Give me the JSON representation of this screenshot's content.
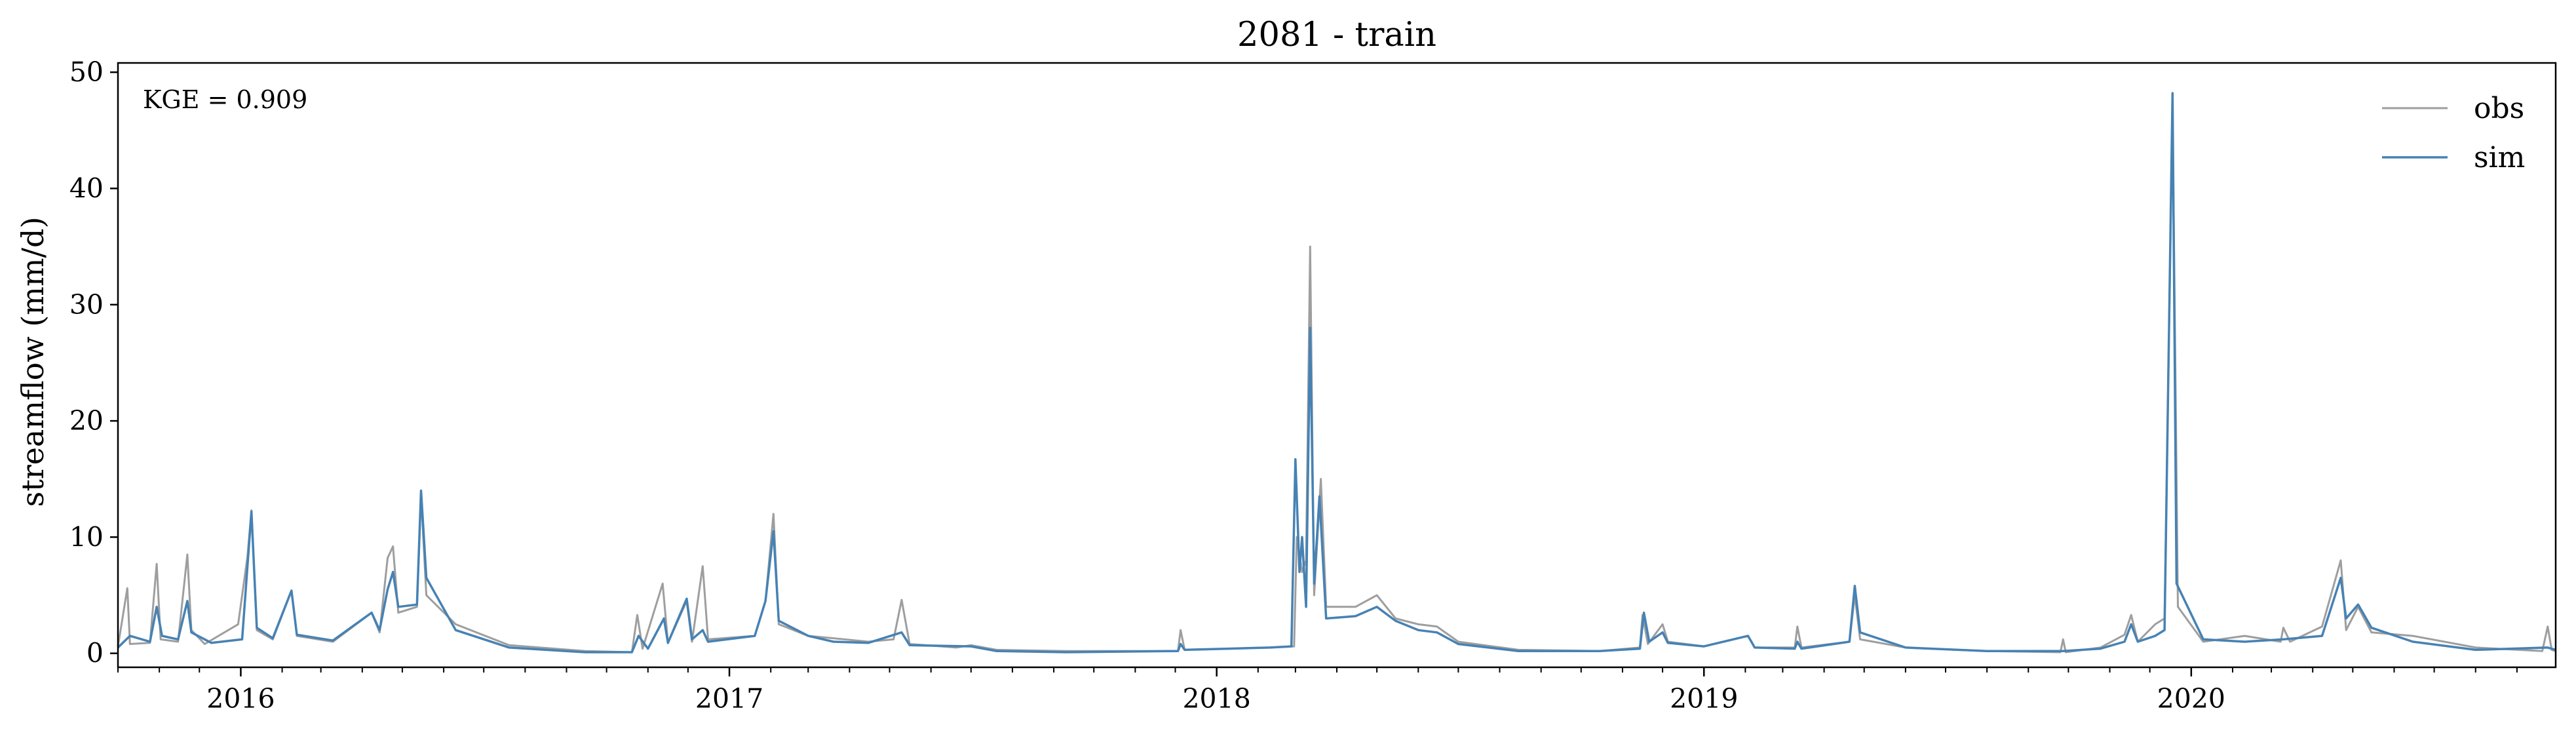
{
  "chart_data": {
    "type": "line",
    "title": "2081 - train",
    "xlabel": "",
    "ylabel": "streamflow (mm/d)",
    "x_start": "2015-10-01",
    "x_end": "2020-09-30",
    "xlim": [
      "2015-10-01",
      "2020-09-30"
    ],
    "ylim": [
      -1.2,
      50.8
    ],
    "yticks": [
      0,
      10,
      20,
      30,
      40,
      50
    ],
    "xticks": [
      {
        "date": "2016-01-01",
        "label": "2016"
      },
      {
        "date": "2017-01-01",
        "label": "2017"
      },
      {
        "date": "2018-01-01",
        "label": "2018"
      },
      {
        "date": "2019-01-01",
        "label": "2019"
      },
      {
        "date": "2020-01-01",
        "label": "2020"
      }
    ],
    "legend_position": "top-right",
    "grid": false,
    "annotation": "KGE = 0.909",
    "series": [
      {
        "name": "obs",
        "color": "#9e9e9e",
        "points": [
          [
            "2015-10-01",
            0.6
          ],
          [
            "2015-10-08",
            5.6
          ],
          [
            "2015-10-10",
            0.8
          ],
          [
            "2015-10-25",
            0.9
          ],
          [
            "2015-10-30",
            7.7
          ],
          [
            "2015-11-02",
            1.2
          ],
          [
            "2015-11-15",
            1.0
          ],
          [
            "2015-11-22",
            8.5
          ],
          [
            "2015-11-25",
            2.0
          ],
          [
            "2015-12-05",
            0.8
          ],
          [
            "2015-12-30",
            2.5
          ],
          [
            "2016-01-06",
            8.3
          ],
          [
            "2016-01-09",
            12.3
          ],
          [
            "2016-01-13",
            2.0
          ],
          [
            "2016-01-25",
            1.2
          ],
          [
            "2016-02-08",
            5.4
          ],
          [
            "2016-02-12",
            1.5
          ],
          [
            "2016-03-10",
            1.0
          ],
          [
            "2016-04-08",
            3.5
          ],
          [
            "2016-04-14",
            1.8
          ],
          [
            "2016-04-20",
            8.2
          ],
          [
            "2016-04-24",
            9.2
          ],
          [
            "2016-04-28",
            3.5
          ],
          [
            "2016-05-12",
            4.0
          ],
          [
            "2016-05-15",
            13.6
          ],
          [
            "2016-05-19",
            5.0
          ],
          [
            "2016-06-10",
            2.5
          ],
          [
            "2016-07-20",
            0.7
          ],
          [
            "2016-09-15",
            0.2
          ],
          [
            "2016-10-20",
            0.1
          ],
          [
            "2016-10-24",
            3.3
          ],
          [
            "2016-10-28",
            0.4
          ],
          [
            "2016-11-12",
            6.0
          ],
          [
            "2016-11-16",
            0.9
          ],
          [
            "2016-11-30",
            4.5
          ],
          [
            "2016-12-04",
            1.0
          ],
          [
            "2016-12-12",
            7.5
          ],
          [
            "2016-12-16",
            1.2
          ],
          [
            "2017-01-20",
            1.5
          ],
          [
            "2017-01-28",
            4.5
          ],
          [
            "2017-02-03",
            12.0
          ],
          [
            "2017-02-07",
            2.5
          ],
          [
            "2017-03-01",
            1.5
          ],
          [
            "2017-03-20",
            1.3
          ],
          [
            "2017-04-15",
            1.0
          ],
          [
            "2017-05-04",
            1.2
          ],
          [
            "2017-05-10",
            4.6
          ],
          [
            "2017-05-16",
            0.8
          ],
          [
            "2017-06-20",
            0.5
          ],
          [
            "2017-07-01",
            0.7
          ],
          [
            "2017-07-20",
            0.3
          ],
          [
            "2017-09-10",
            0.2
          ],
          [
            "2017-10-25",
            0.2
          ],
          [
            "2017-12-03",
            0.2
          ],
          [
            "2017-12-05",
            2.0
          ],
          [
            "2017-12-08",
            0.3
          ],
          [
            "2018-01-10",
            0.4
          ],
          [
            "2018-02-10",
            0.5
          ],
          [
            "2018-02-28",
            0.6
          ],
          [
            "2018-03-02",
            10.0
          ],
          [
            "2018-03-06",
            7.0
          ],
          [
            "2018-03-09",
            8.0
          ],
          [
            "2018-03-12",
            35.0
          ],
          [
            "2018-03-15",
            5.0
          ],
          [
            "2018-03-20",
            15.0
          ],
          [
            "2018-03-24",
            4.0
          ],
          [
            "2018-04-15",
            4.0
          ],
          [
            "2018-05-01",
            5.0
          ],
          [
            "2018-05-15",
            3.0
          ],
          [
            "2018-06-01",
            2.5
          ],
          [
            "2018-06-15",
            2.3
          ],
          [
            "2018-07-01",
            1.0
          ],
          [
            "2018-08-15",
            0.3
          ],
          [
            "2018-10-15",
            0.2
          ],
          [
            "2018-11-14",
            0.5
          ],
          [
            "2018-11-16",
            3.3
          ],
          [
            "2018-11-20",
            0.8
          ],
          [
            "2018-12-01",
            2.5
          ],
          [
            "2018-12-05",
            1.0
          ],
          [
            "2019-01-01",
            0.6
          ],
          [
            "2019-02-03",
            1.5
          ],
          [
            "2019-02-08",
            0.5
          ],
          [
            "2019-03-10",
            0.5
          ],
          [
            "2019-03-12",
            2.3
          ],
          [
            "2019-03-15",
            0.5
          ],
          [
            "2019-04-20",
            1.0
          ],
          [
            "2019-04-24",
            5.0
          ],
          [
            "2019-04-28",
            1.2
          ],
          [
            "2019-06-01",
            0.5
          ],
          [
            "2019-08-01",
            0.2
          ],
          [
            "2019-09-25",
            0.1
          ],
          [
            "2019-09-27",
            1.2
          ],
          [
            "2019-09-29",
            0.1
          ],
          [
            "2019-10-25",
            0.5
          ],
          [
            "2019-11-12",
            1.6
          ],
          [
            "2019-11-17",
            3.3
          ],
          [
            "2019-11-22",
            1.0
          ],
          [
            "2019-12-05",
            2.5
          ],
          [
            "2019-12-12",
            3.0
          ],
          [
            "2019-12-18",
            47.0
          ],
          [
            "2019-12-22",
            4.0
          ],
          [
            "2020-01-10",
            1.0
          ],
          [
            "2020-02-10",
            1.5
          ],
          [
            "2020-03-08",
            1.0
          ],
          [
            "2020-03-10",
            2.2
          ],
          [
            "2020-03-15",
            1.0
          ],
          [
            "2020-04-08",
            2.3
          ],
          [
            "2020-04-22",
            8.0
          ],
          [
            "2020-04-26",
            2.0
          ],
          [
            "2020-05-05",
            4.0
          ],
          [
            "2020-05-15",
            1.8
          ],
          [
            "2020-06-15",
            1.5
          ],
          [
            "2020-08-01",
            0.5
          ],
          [
            "2020-09-20",
            0.2
          ],
          [
            "2020-09-24",
            2.3
          ],
          [
            "2020-09-27",
            0.3
          ],
          [
            "2020-09-30",
            0.2
          ]
        ]
      },
      {
        "name": "sim",
        "color": "#4682b4",
        "points": [
          [
            "2015-10-01",
            0.5
          ],
          [
            "2015-10-10",
            1.5
          ],
          [
            "2015-10-25",
            1.0
          ],
          [
            "2015-10-30",
            4.0
          ],
          [
            "2015-11-03",
            1.5
          ],
          [
            "2015-11-15",
            1.2
          ],
          [
            "2015-11-22",
            4.5
          ],
          [
            "2015-11-25",
            1.8
          ],
          [
            "2015-12-10",
            0.9
          ],
          [
            "2016-01-02",
            1.2
          ],
          [
            "2016-01-09",
            12.2
          ],
          [
            "2016-01-13",
            2.2
          ],
          [
            "2016-01-25",
            1.3
          ],
          [
            "2016-02-08",
            5.4
          ],
          [
            "2016-02-12",
            1.6
          ],
          [
            "2016-03-10",
            1.1
          ],
          [
            "2016-04-08",
            3.5
          ],
          [
            "2016-04-14",
            2.0
          ],
          [
            "2016-04-20",
            5.5
          ],
          [
            "2016-04-24",
            7.0
          ],
          [
            "2016-04-28",
            4.0
          ],
          [
            "2016-05-12",
            4.2
          ],
          [
            "2016-05-15",
            14.0
          ],
          [
            "2016-05-19",
            6.5
          ],
          [
            "2016-06-10",
            2.0
          ],
          [
            "2016-07-20",
            0.5
          ],
          [
            "2016-09-15",
            0.1
          ],
          [
            "2016-10-20",
            0.1
          ],
          [
            "2016-10-25",
            1.5
          ],
          [
            "2016-11-01",
            0.4
          ],
          [
            "2016-11-13",
            3.0
          ],
          [
            "2016-11-16",
            0.9
          ],
          [
            "2016-11-30",
            4.7
          ],
          [
            "2016-12-04",
            1.2
          ],
          [
            "2016-12-12",
            2.0
          ],
          [
            "2016-12-16",
            1.0
          ],
          [
            "2017-01-20",
            1.5
          ],
          [
            "2017-01-28",
            4.5
          ],
          [
            "2017-02-03",
            10.5
          ],
          [
            "2017-02-07",
            2.8
          ],
          [
            "2017-03-01",
            1.5
          ],
          [
            "2017-03-20",
            1.0
          ],
          [
            "2017-04-15",
            0.9
          ],
          [
            "2017-05-10",
            1.8
          ],
          [
            "2017-05-16",
            0.7
          ],
          [
            "2017-07-01",
            0.6
          ],
          [
            "2017-07-20",
            0.2
          ],
          [
            "2017-09-10",
            0.1
          ],
          [
            "2017-12-03",
            0.2
          ],
          [
            "2017-12-05",
            0.8
          ],
          [
            "2017-12-08",
            0.3
          ],
          [
            "2018-01-10",
            0.4
          ],
          [
            "2018-02-10",
            0.5
          ],
          [
            "2018-02-26",
            0.6
          ],
          [
            "2018-03-01",
            16.7
          ],
          [
            "2018-03-04",
            7.0
          ],
          [
            "2018-03-06",
            10.0
          ],
          [
            "2018-03-09",
            4.0
          ],
          [
            "2018-03-12",
            28.0
          ],
          [
            "2018-03-15",
            6.0
          ],
          [
            "2018-03-19",
            13.5
          ],
          [
            "2018-03-24",
            3.0
          ],
          [
            "2018-04-15",
            3.2
          ],
          [
            "2018-05-01",
            4.0
          ],
          [
            "2018-05-15",
            2.8
          ],
          [
            "2018-06-01",
            2.0
          ],
          [
            "2018-06-15",
            1.8
          ],
          [
            "2018-07-01",
            0.8
          ],
          [
            "2018-08-15",
            0.2
          ],
          [
            "2018-10-15",
            0.2
          ],
          [
            "2018-11-14",
            0.4
          ],
          [
            "2018-11-17",
            3.5
          ],
          [
            "2018-11-21",
            1.0
          ],
          [
            "2018-12-01",
            1.8
          ],
          [
            "2018-12-05",
            0.9
          ],
          [
            "2019-01-01",
            0.6
          ],
          [
            "2019-02-03",
            1.5
          ],
          [
            "2019-02-08",
            0.5
          ],
          [
            "2019-03-10",
            0.4
          ],
          [
            "2019-03-12",
            1.0
          ],
          [
            "2019-03-15",
            0.4
          ],
          [
            "2019-04-20",
            1.0
          ],
          [
            "2019-04-24",
            5.8
          ],
          [
            "2019-04-28",
            1.8
          ],
          [
            "2019-06-01",
            0.5
          ],
          [
            "2019-08-01",
            0.2
          ],
          [
            "2019-09-27",
            0.2
          ],
          [
            "2019-10-25",
            0.4
          ],
          [
            "2019-11-12",
            1.0
          ],
          [
            "2019-11-17",
            2.5
          ],
          [
            "2019-11-22",
            1.0
          ],
          [
            "2019-12-05",
            1.5
          ],
          [
            "2019-12-12",
            2.0
          ],
          [
            "2019-12-18",
            48.2
          ],
          [
            "2019-12-21",
            6.0
          ],
          [
            "2020-01-10",
            1.2
          ],
          [
            "2020-02-10",
            1.0
          ],
          [
            "2020-03-10",
            1.2
          ],
          [
            "2020-04-08",
            1.5
          ],
          [
            "2020-04-22",
            6.5
          ],
          [
            "2020-04-26",
            3.0
          ],
          [
            "2020-05-05",
            4.2
          ],
          [
            "2020-05-15",
            2.2
          ],
          [
            "2020-06-15",
            1.0
          ],
          [
            "2020-08-01",
            0.3
          ],
          [
            "2020-09-24",
            0.5
          ],
          [
            "2020-09-30",
            0.3
          ]
        ]
      }
    ]
  }
}
